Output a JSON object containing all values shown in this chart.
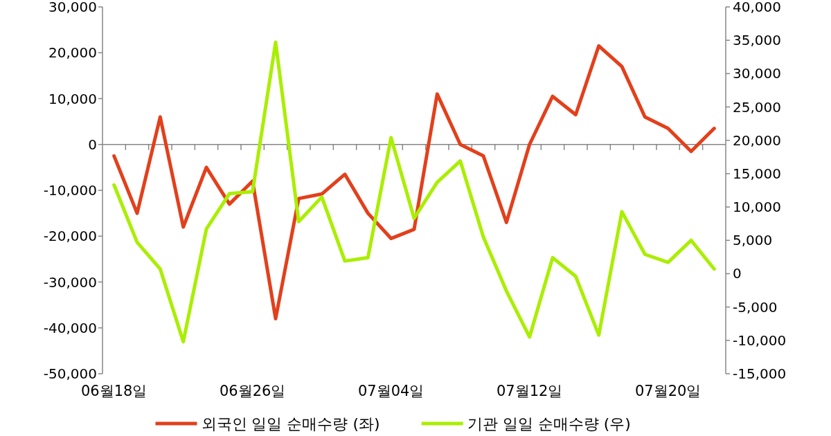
{
  "chart_data": {
    "type": "line",
    "categories": [
      "06월18일",
      null,
      null,
      null,
      null,
      null,
      "06월26일",
      null,
      null,
      null,
      null,
      null,
      "07월04일",
      null,
      null,
      null,
      null,
      null,
      "07월12일",
      null,
      null,
      null,
      null,
      null,
      "07월20일",
      null,
      null
    ],
    "series": [
      {
        "name": "외국인 일일 순매수량 (좌)",
        "color": "#e2401c",
        "values": [
          -2500,
          -15000,
          6000,
          -18000,
          -5000,
          -13000,
          -8000,
          -38000,
          -11800,
          -10800,
          -6500,
          -15000,
          -20500,
          -18500,
          11000,
          0,
          -2500,
          -17000,
          0,
          10500,
          6500,
          21500,
          17000,
          6000,
          3500,
          -1500,
          3500
        ]
      },
      {
        "name": "기관 일일 순매수량 (우)",
        "color": "#aaee00",
        "axis": "y2",
        "values": [
          13300,
          4700,
          700,
          -10200,
          6700,
          12000,
          12300,
          34700,
          7800,
          11500,
          1900,
          2400,
          20400,
          8300,
          13700,
          16900,
          5500,
          -2600,
          -9500,
          2400,
          -400,
          -9200,
          9300,
          2900,
          1700,
          5000,
          700
        ]
      }
    ],
    "ylim": [
      -50000,
      30000
    ],
    "yticks": [
      {
        "value": -50000,
        "label": "-50,000"
      },
      {
        "value": -40000,
        "label": "-40,000"
      },
      {
        "value": -30000,
        "label": "-30,000"
      },
      {
        "value": -20000,
        "label": "-20,000"
      },
      {
        "value": -10000,
        "label": "-10,000"
      },
      0,
      {
        "value": 10000,
        "label": "10,000"
      },
      {
        "value": 20000,
        "label": "20,000"
      },
      {
        "value": 30000,
        "label": "30,000"
      }
    ],
    "y2lim": [
      -15000,
      40000
    ],
    "y2ticks": [
      {
        "value": -15000,
        "label": "-15,000"
      },
      {
        "value": -10000,
        "label": "-10,000"
      },
      {
        "value": -5000,
        "label": "-5,000"
      },
      0,
      {
        "value": 5000,
        "label": "5,000"
      },
      {
        "value": 10000,
        "label": "10,000"
      },
      {
        "value": 15000,
        "label": "15,000"
      },
      {
        "value": 20000,
        "label": "20,000"
      },
      {
        "value": 25000,
        "label": "25,000"
      },
      {
        "value": 30000,
        "label": "30,000"
      },
      {
        "value": 35000,
        "label": "35,000"
      },
      {
        "value": 40000,
        "label": "40,000"
      }
    ],
    "legend": "bottom",
    "marker": "none",
    "line_style": "solid"
  }
}
